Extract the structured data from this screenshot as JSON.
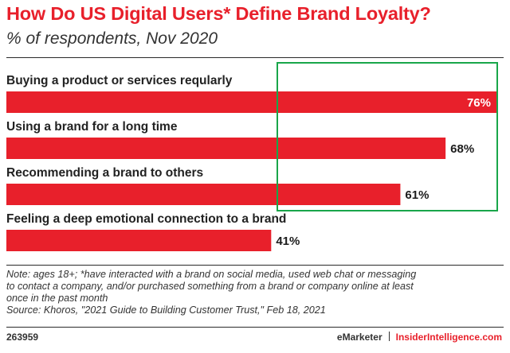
{
  "header": {
    "title": "How Do US Digital Users* Define Brand Loyalty?",
    "subtitle": "% of respondents, Nov 2020"
  },
  "chart_data": {
    "type": "bar",
    "orientation": "horizontal",
    "title": "How Do US Digital Users* Define Brand Loyalty?",
    "subtitle": "% of respondents, Nov 2020",
    "categories": [
      "Buying a product or services reqularly",
      "Using a brand for a long time",
      "Recommending a brand to others",
      "Feeling a deep emotional connection to a brand"
    ],
    "values": [
      76,
      68,
      61,
      41
    ],
    "value_labels": [
      "76%",
      "68%",
      "61%",
      "41%"
    ],
    "unit": "%",
    "xlim": [
      0,
      76
    ],
    "grid": false,
    "bar_color": "#e8202b",
    "highlight_color": "#19a64a"
  },
  "notes": {
    "line1": "Note: ages 18+; *have interacted with a brand on social media, used web chat or messaging",
    "line2": "to contact a company, and/or purchased something from a brand or company online at least",
    "line3": "once in the past month",
    "source": "Source: Khoros, \"2021 Guide to Building Customer Trust,\" Feb 18, 2021"
  },
  "footer": {
    "chart_id": "263959",
    "brand1": "eMarketer",
    "brand2": "InsiderIntelligence.com"
  },
  "colors": {
    "accent": "#e8202b",
    "text": "#1c1c1c"
  }
}
